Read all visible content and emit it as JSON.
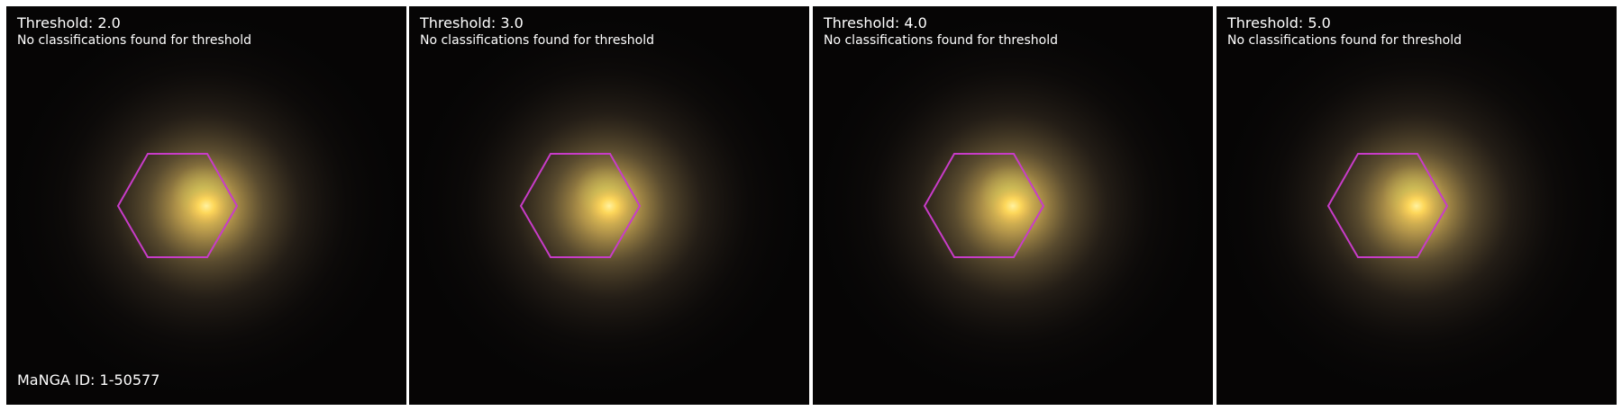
{
  "galaxy": {
    "id_label": "MaNGA ID: 1-50577"
  },
  "panels": [
    {
      "title": "Threshold: 2.0",
      "message": "No classifications found for threshold"
    },
    {
      "title": "Threshold: 3.0",
      "message": "No classifications found for threshold"
    },
    {
      "title": "Threshold: 4.0",
      "message": "No classifications found for threshold"
    },
    {
      "title": "Threshold: 5.0",
      "message": "No classifications found for threshold"
    }
  ],
  "colors": {
    "hexagon_outline": "#c83cc8",
    "galaxy_core": "#ffd35a",
    "background": "#060505"
  },
  "icons": {
    "ifu_footprint": "hexagon-outline-icon"
  }
}
